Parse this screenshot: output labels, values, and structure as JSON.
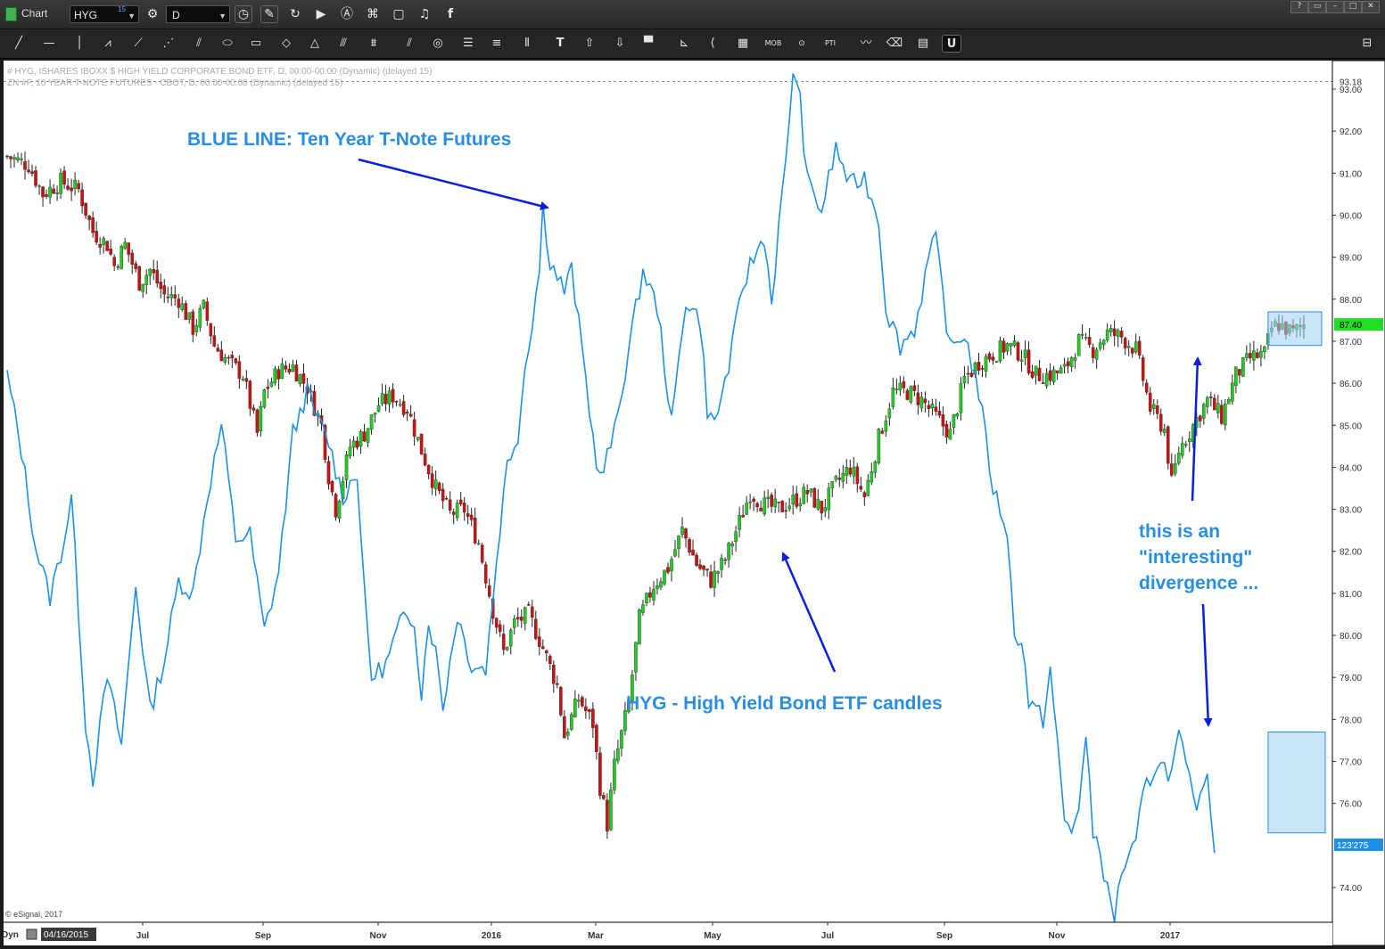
{
  "window": {
    "title": "Chart",
    "symbol": "HYG",
    "symbol_superscript": "15",
    "interval": "D"
  },
  "icons": {
    "toolbar": [
      "refresh-icon",
      "pencil-icon",
      "link-icon",
      "play-icon",
      "text-a-icon",
      "tag-icon",
      "comment-icon",
      "twitter-icon",
      "facebook-icon"
    ],
    "window_controls": [
      "help-icon",
      "restore-icon",
      "minimize-icon",
      "maximize-icon",
      "close-icon"
    ],
    "drawing": [
      "line-tool-icon",
      "horizontal-line-icon",
      "vertical-line-icon",
      "zigzag-icon",
      "pitchfork-icon",
      "fan-icon",
      "speed-lines-icon",
      "ellipse-icon",
      "rectangle-icon",
      "diamond-icon",
      "triangle-icon",
      "parallel-channel-icon",
      "regression-icon",
      "double-line-icon",
      "circles-icon",
      "fib-retrace-icon",
      "fib-extension-icon",
      "vertical-bars-icon",
      "text-tool-icon",
      "arrow-up-icon",
      "arrow-down-icon",
      "fill-icon",
      "gann-icon",
      "trend-angle-icon",
      "grid-icon",
      "mob-icon",
      "td-icon",
      "pti-icon",
      "cycle-icon",
      "eraser-icon",
      "cursor-icon",
      "magnet-icon",
      "settings-icon"
    ]
  },
  "chart_data": {
    "type": "line",
    "title": "",
    "legend_lines": [
      "# HYG, ISHARES IBOXX $ HIGH YIELD CORPORATE BOND ETF, D, 00:00-00:00 (Dynamic) (delayed 15)",
      "ZN #F, 10 YEAR T-NOTE FUTURES - CBOT, D, 00:00-00:00 (Dynamic) (delayed 15)"
    ],
    "x_tick_labels": [
      "Jul",
      "Sep",
      "Nov",
      "2016",
      "Mar",
      "May",
      "Jul",
      "Sep",
      "Nov",
      "2017"
    ],
    "x_start_label": "04/16/2015",
    "x_start_prefix": "Dyn",
    "y_tick_labels": [
      "74.00",
      "76.00",
      "77.00",
      "78.00",
      "79.00",
      "80.00",
      "81.00",
      "82.00",
      "83.00",
      "84.00",
      "85.00",
      "86.00",
      "87.00",
      "88.00",
      "89.00",
      "90.00",
      "91.00",
      "92.00",
      "93.00"
    ],
    "y_range": [
      73.5,
      93.5
    ],
    "price_tags": {
      "dashed_level": "93.18",
      "hyg_last": "87.40",
      "zn_last": "123'275"
    },
    "copyright": "© eSignal, 2017",
    "series": [
      {
        "name": "HYG",
        "style": "candlestick",
        "color_up": "#22cc22",
        "color_down": "#cc1111",
        "close_path": [
          [
            0,
            91.4
          ],
          [
            6,
            91.2
          ],
          [
            10,
            90.5
          ],
          [
            15,
            90.8
          ],
          [
            20,
            90.6
          ],
          [
            24,
            89.6
          ],
          [
            28,
            89.3
          ],
          [
            30,
            88.8
          ],
          [
            33,
            89.3
          ],
          [
            37,
            88.4
          ],
          [
            40,
            88.7
          ],
          [
            44,
            88.1
          ],
          [
            48,
            88.0
          ],
          [
            52,
            87.3
          ],
          [
            55,
            87.8
          ],
          [
            58,
            86.9
          ],
          [
            62,
            86.5
          ],
          [
            66,
            86.2
          ],
          [
            70,
            84.8
          ],
          [
            72,
            85.8
          ],
          [
            76,
            86.3
          ],
          [
            80,
            86.4
          ],
          [
            84,
            85.9
          ],
          [
            88,
            85.0
          ],
          [
            90,
            83.8
          ],
          [
            92,
            83.0
          ],
          [
            96,
            84.5
          ],
          [
            100,
            84.8
          ],
          [
            104,
            85.5
          ],
          [
            108,
            85.7
          ],
          [
            112,
            85.4
          ],
          [
            116,
            84.4
          ],
          [
            120,
            83.5
          ],
          [
            124,
            82.9
          ],
          [
            128,
            83.0
          ],
          [
            132,
            82.2
          ],
          [
            136,
            80.6
          ],
          [
            139,
            79.6
          ],
          [
            142,
            80.3
          ],
          [
            146,
            80.5
          ],
          [
            150,
            79.7
          ],
          [
            154,
            78.8
          ],
          [
            156,
            77.6
          ],
          [
            160,
            78.5
          ],
          [
            164,
            77.9
          ],
          [
            166,
            76.4
          ],
          [
            168,
            75.5
          ],
          [
            170,
            76.9
          ],
          [
            174,
            78.4
          ],
          [
            177,
            80.4
          ],
          [
            181,
            81.2
          ],
          [
            185,
            81.6
          ],
          [
            189,
            82.5
          ],
          [
            193,
            81.7
          ],
          [
            197,
            81.3
          ],
          [
            201,
            81.8
          ],
          [
            205,
            82.7
          ],
          [
            208,
            83.4
          ],
          [
            212,
            83.1
          ],
          [
            216,
            83.0
          ],
          [
            220,
            83.2
          ],
          [
            224,
            83.4
          ],
          [
            228,
            83.0
          ],
          [
            232,
            83.6
          ],
          [
            236,
            84.0
          ],
          [
            240,
            83.3
          ],
          [
            244,
            84.7
          ],
          [
            248,
            85.8
          ],
          [
            252,
            85.8
          ],
          [
            256,
            85.6
          ],
          [
            260,
            85.2
          ],
          [
            264,
            84.8
          ],
          [
            268,
            86.1
          ],
          [
            272,
            86.5
          ],
          [
            276,
            86.7
          ],
          [
            280,
            86.9
          ],
          [
            284,
            86.7
          ],
          [
            288,
            86.2
          ],
          [
            292,
            86.2
          ],
          [
            296,
            86.3
          ],
          [
            300,
            87.0
          ],
          [
            304,
            86.8
          ],
          [
            308,
            87.2
          ],
          [
            312,
            87.1
          ],
          [
            316,
            86.8
          ],
          [
            320,
            85.4
          ],
          [
            324,
            84.9
          ],
          [
            326,
            83.6
          ],
          [
            328,
            84.4
          ],
          [
            332,
            85.0
          ],
          [
            336,
            85.6
          ],
          [
            340,
            85.2
          ],
          [
            344,
            86.2
          ],
          [
            348,
            86.6
          ],
          [
            352,
            86.7
          ],
          [
            354,
            87.3
          ],
          [
            356,
            87.4
          ],
          [
            360,
            87.2
          ],
          [
            363,
            87.4
          ]
        ]
      },
      {
        "name": "ZN #F",
        "style": "line",
        "color": "#1e90e8",
        "path": [
          [
            0,
            86.2
          ],
          [
            4,
            84.4
          ],
          [
            8,
            82.1
          ],
          [
            12,
            80.9
          ],
          [
            16,
            82.3
          ],
          [
            18,
            83.3
          ],
          [
            22,
            77.9
          ],
          [
            24,
            76.6
          ],
          [
            28,
            79.0
          ],
          [
            32,
            77.4
          ],
          [
            36,
            81.2
          ],
          [
            40,
            78.2
          ],
          [
            44,
            79.4
          ],
          [
            48,
            81.3
          ],
          [
            52,
            81.0
          ],
          [
            56,
            83.3
          ],
          [
            60,
            85.0
          ],
          [
            64,
            82.3
          ],
          [
            68,
            82.4
          ],
          [
            72,
            80.1
          ],
          [
            76,
            81.5
          ],
          [
            80,
            84.8
          ],
          [
            84,
            85.8
          ],
          [
            86,
            85.3
          ],
          [
            90,
            84.6
          ],
          [
            94,
            83.3
          ],
          [
            98,
            83.9
          ],
          [
            100,
            81.0
          ],
          [
            102,
            79.0
          ],
          [
            106,
            79.3
          ],
          [
            110,
            80.3
          ],
          [
            114,
            80.4
          ],
          [
            116,
            78.6
          ],
          [
            118,
            80.4
          ],
          [
            120,
            79.6
          ],
          [
            122,
            78.3
          ],
          [
            126,
            80.5
          ],
          [
            130,
            79.3
          ],
          [
            134,
            79.2
          ],
          [
            138,
            82.6
          ],
          [
            140,
            84.1
          ],
          [
            143,
            84.8
          ],
          [
            145,
            86.4
          ],
          [
            147,
            87.5
          ],
          [
            149,
            88.7
          ],
          [
            150,
            90.2
          ],
          [
            152,
            88.9
          ],
          [
            156,
            88.2
          ],
          [
            158,
            88.7
          ],
          [
            162,
            86.1
          ],
          [
            164,
            84.7
          ],
          [
            166,
            83.7
          ],
          [
            170,
            84.8
          ],
          [
            174,
            86.8
          ],
          [
            178,
            88.7
          ],
          [
            182,
            87.8
          ],
          [
            184,
            86.5
          ],
          [
            186,
            85.0
          ],
          [
            190,
            88.0
          ],
          [
            194,
            87.5
          ],
          [
            196,
            85.4
          ],
          [
            198,
            85.0
          ],
          [
            202,
            86.4
          ],
          [
            206,
            88.3
          ],
          [
            208,
            88.8
          ],
          [
            212,
            89.5
          ],
          [
            214,
            87.9
          ],
          [
            216,
            89.7
          ],
          [
            218,
            91.2
          ],
          [
            220,
            93.5
          ],
          [
            222,
            92.7
          ],
          [
            224,
            90.8
          ],
          [
            228,
            90.1
          ],
          [
            232,
            91.6
          ],
          [
            236,
            90.7
          ],
          [
            240,
            90.9
          ],
          [
            244,
            89.9
          ],
          [
            246,
            87.8
          ],
          [
            250,
            86.9
          ],
          [
            254,
            87.3
          ],
          [
            256,
            88.1
          ],
          [
            258,
            89.0
          ],
          [
            260,
            89.4
          ],
          [
            262,
            88.1
          ],
          [
            264,
            86.8
          ],
          [
            268,
            87.2
          ],
          [
            272,
            85.8
          ],
          [
            276,
            83.5
          ],
          [
            280,
            82.5
          ],
          [
            282,
            79.9
          ],
          [
            284,
            80.0
          ],
          [
            286,
            78.4
          ],
          [
            290,
            78.0
          ],
          [
            292,
            79.2
          ],
          [
            296,
            75.6
          ],
          [
            298,
            75.3
          ],
          [
            300,
            76.0
          ],
          [
            302,
            77.5
          ],
          [
            304,
            75.3
          ],
          [
            306,
            74.9
          ],
          [
            308,
            73.9
          ],
          [
            310,
            73.3
          ],
          [
            312,
            74.4
          ],
          [
            316,
            75.0
          ],
          [
            318,
            76.2
          ],
          [
            322,
            77.0
          ],
          [
            326,
            76.7
          ],
          [
            328,
            77.6
          ],
          [
            332,
            76.1
          ],
          [
            334,
            76.0
          ],
          [
            336,
            76.9
          ],
          [
            338,
            74.8
          ]
        ]
      }
    ],
    "annotations": [
      {
        "text": "BLUE LINE: Ten Year T-Note Futures",
        "color": "#2a8ee0"
      },
      {
        "text": "HYG - High Yield Bond ETF candles",
        "color": "#2a8ee0"
      },
      {
        "lines": [
          "this is an",
          "\"interesting\"",
          "divergence ..."
        ],
        "color": "#2a8ee0"
      }
    ],
    "highlight_boxes": [
      {
        "label": "hyg-recent",
        "x": [
          353,
          368
        ],
        "y": [
          86.9,
          87.7
        ],
        "color": "#9fd0f3"
      },
      {
        "label": "zn-recent",
        "x": [
          353,
          369
        ],
        "y": [
          75.3,
          77.7
        ],
        "color": "#9fd0f3"
      }
    ]
  }
}
